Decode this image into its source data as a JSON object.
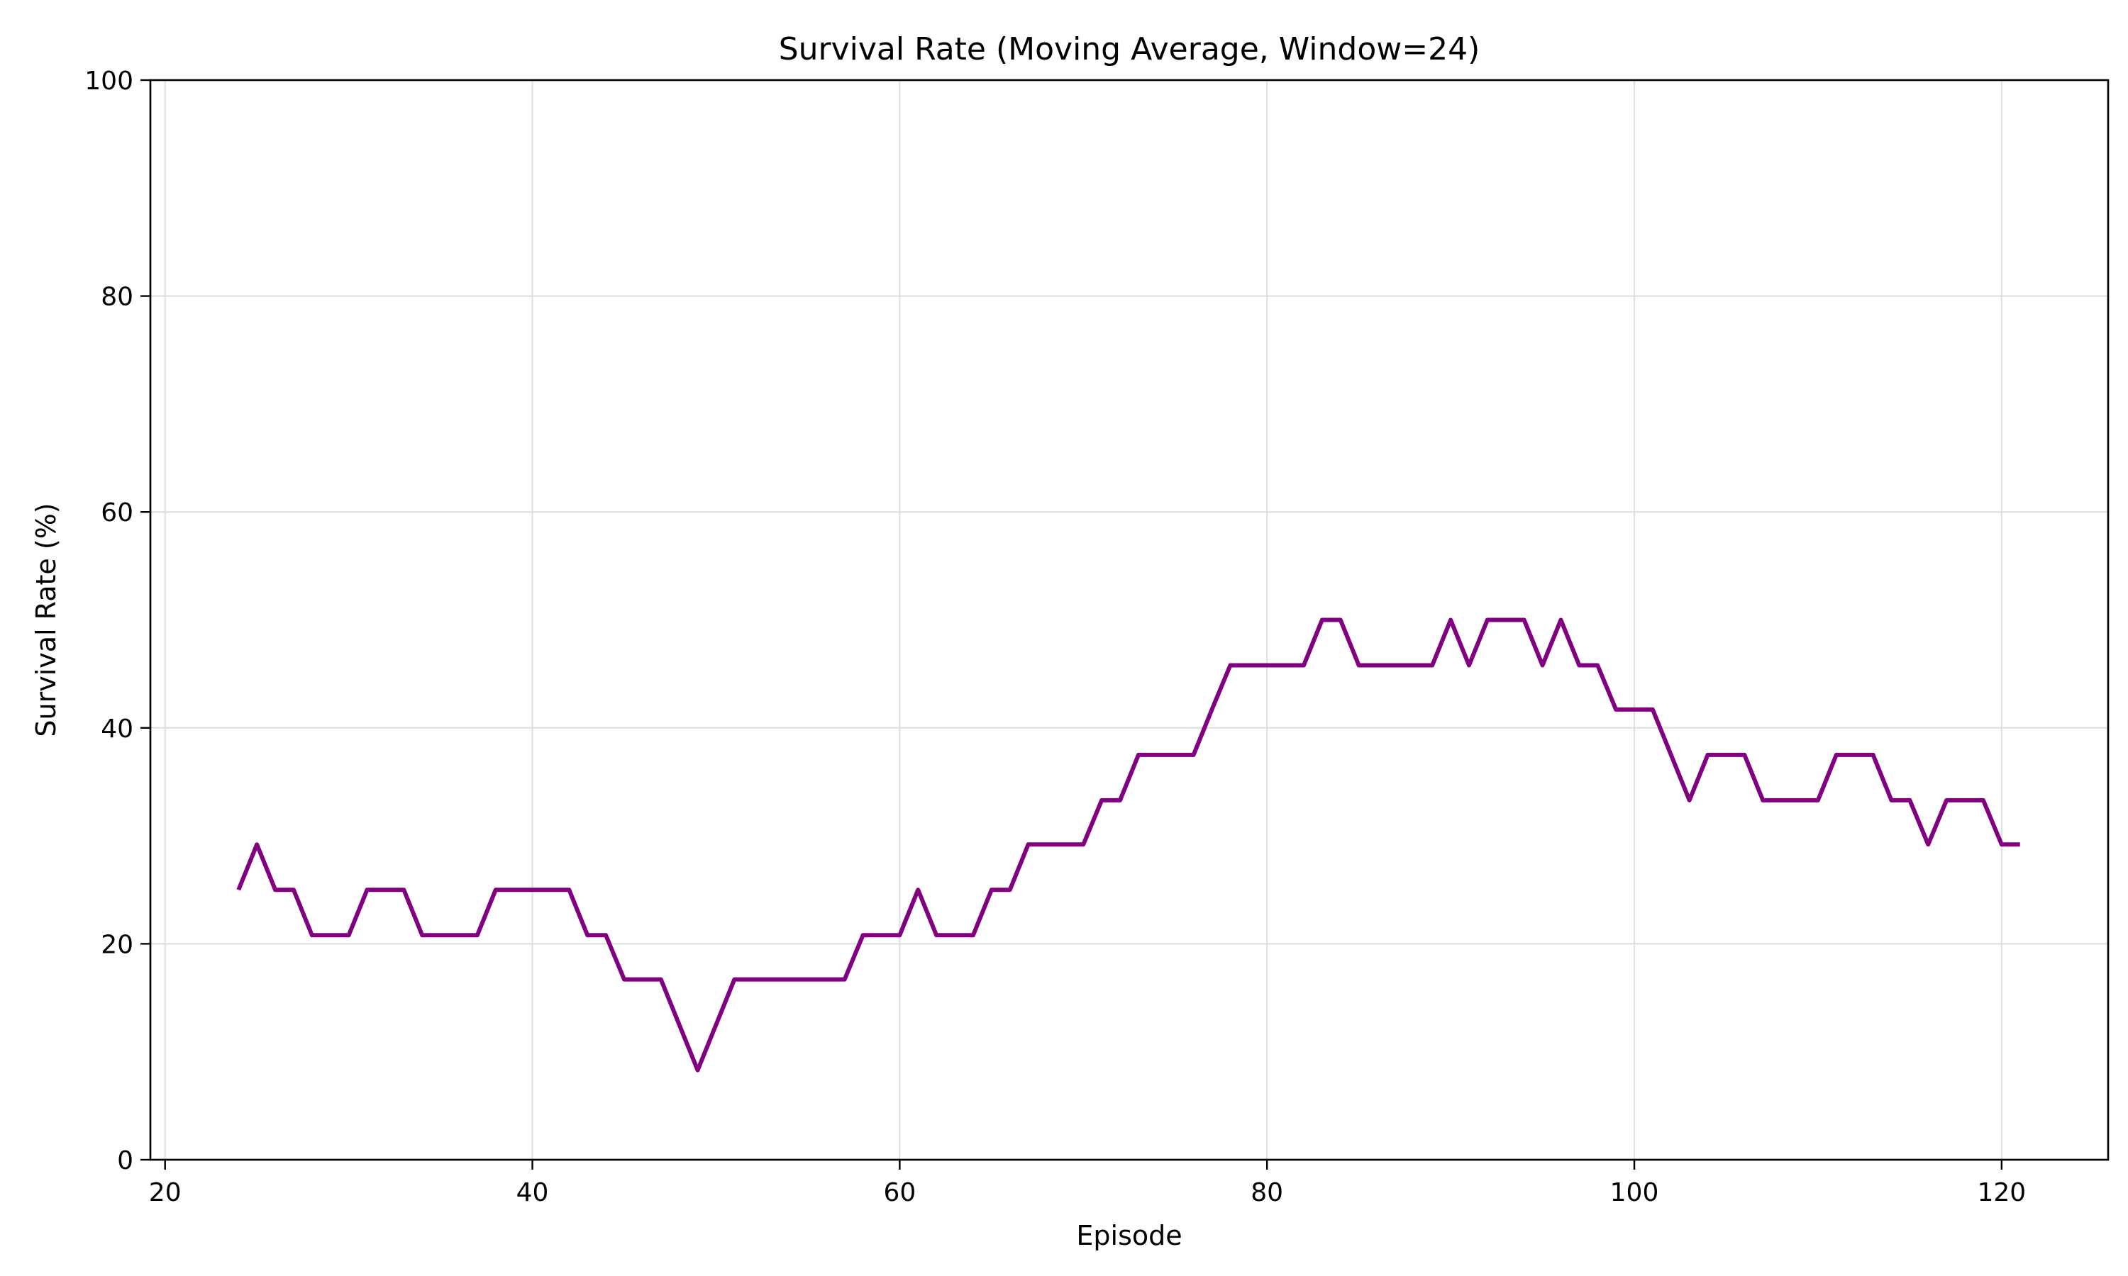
{
  "chart_data": {
    "type": "line",
    "title": "Survival Rate (Moving Average, Window=24)",
    "xlabel": "Episode",
    "ylabel": "Survival Rate (%)",
    "xlim": [
      19.2,
      125.8
    ],
    "ylim": [
      0,
      100
    ],
    "xticks": [
      20,
      40,
      60,
      80,
      100,
      120
    ],
    "yticks": [
      0,
      20,
      40,
      60,
      80,
      100
    ],
    "grid": true,
    "legend": "none",
    "series": [
      {
        "color": "#800080",
        "x": [
          24,
          25,
          26,
          27,
          28,
          29,
          30,
          31,
          32,
          33,
          34,
          35,
          36,
          37,
          38,
          39,
          40,
          41,
          42,
          43,
          44,
          45,
          46,
          47,
          48,
          49,
          50,
          51,
          52,
          53,
          54,
          55,
          56,
          57,
          58,
          59,
          60,
          61,
          62,
          63,
          64,
          65,
          66,
          67,
          68,
          69,
          70,
          71,
          72,
          73,
          74,
          75,
          76,
          77,
          78,
          79,
          80,
          81,
          82,
          83,
          84,
          85,
          86,
          87,
          88,
          89,
          90,
          91,
          92,
          93,
          94,
          95,
          96,
          97,
          98,
          99,
          100,
          101,
          102,
          103,
          104,
          105,
          106,
          107,
          108,
          109,
          110,
          111,
          112,
          113,
          114,
          115,
          116,
          117,
          118,
          119,
          120,
          121
        ],
        "y": [
          25.0,
          29.2,
          25.0,
          25.0,
          20.8,
          20.8,
          20.8,
          25.0,
          25.0,
          25.0,
          20.8,
          20.8,
          20.8,
          20.8,
          25.0,
          25.0,
          25.0,
          25.0,
          25.0,
          20.8,
          20.8,
          16.7,
          16.7,
          16.7,
          12.5,
          8.3,
          12.5,
          16.7,
          16.7,
          16.7,
          16.7,
          16.7,
          16.7,
          16.7,
          20.8,
          20.8,
          20.8,
          25.0,
          20.8,
          20.8,
          20.8,
          25.0,
          25.0,
          29.2,
          29.2,
          29.2,
          29.2,
          33.3,
          33.3,
          37.5,
          37.5,
          37.5,
          37.5,
          41.7,
          45.8,
          45.8,
          45.8,
          45.8,
          45.8,
          50.0,
          50.0,
          45.8,
          45.8,
          45.8,
          45.8,
          45.8,
          50.0,
          45.8,
          50.0,
          50.0,
          50.0,
          45.8,
          50.0,
          45.8,
          45.8,
          41.7,
          41.7,
          41.7,
          37.5,
          33.3,
          37.5,
          37.5,
          37.5,
          33.3,
          33.3,
          33.3,
          33.3,
          37.5,
          37.5,
          37.5,
          33.3,
          33.3,
          29.2,
          33.3,
          33.3,
          33.3,
          29.2,
          29.2
        ]
      }
    ]
  }
}
